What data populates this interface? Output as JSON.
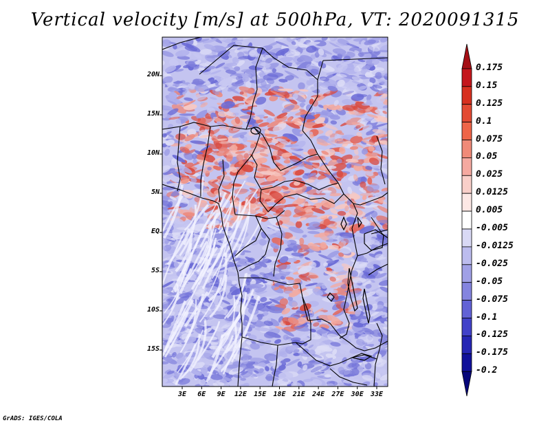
{
  "title": "Vertical velocity [m/s] at 500hPa, VT: 2020091315",
  "credit": "GrADS: IGES/COLA",
  "axes": {
    "y_labels": [
      "20N",
      "15N",
      "10N",
      "5N",
      "EQ",
      "5S",
      "10S",
      "15S"
    ],
    "x_labels": [
      "3E",
      "6E",
      "9E",
      "12E",
      "15E",
      "18E",
      "21E",
      "24E",
      "27E",
      "30E",
      "33E"
    ]
  },
  "colorbar": {
    "labels": [
      "0.175",
      "0.15",
      "0.125",
      "0.1",
      "0.075",
      "0.05",
      "0.025",
      "0.0125",
      "0.005",
      "-0.005",
      "-0.0125",
      "-0.025",
      "-0.05",
      "-0.075",
      "-0.1",
      "-0.125",
      "-0.175",
      "-0.2"
    ],
    "colors": [
      "#a50f15",
      "#c4161c",
      "#d7301f",
      "#e34a33",
      "#ef6548",
      "#f08a78",
      "#f5a9a0",
      "#f9cfc9",
      "#fde8e5",
      "#ffffff",
      "#d9d9f5",
      "#bcbcee",
      "#a0a0e6",
      "#8484df",
      "#6262d6",
      "#4141c9",
      "#2525b4",
      "#10109a",
      "#06067a"
    ]
  }
}
